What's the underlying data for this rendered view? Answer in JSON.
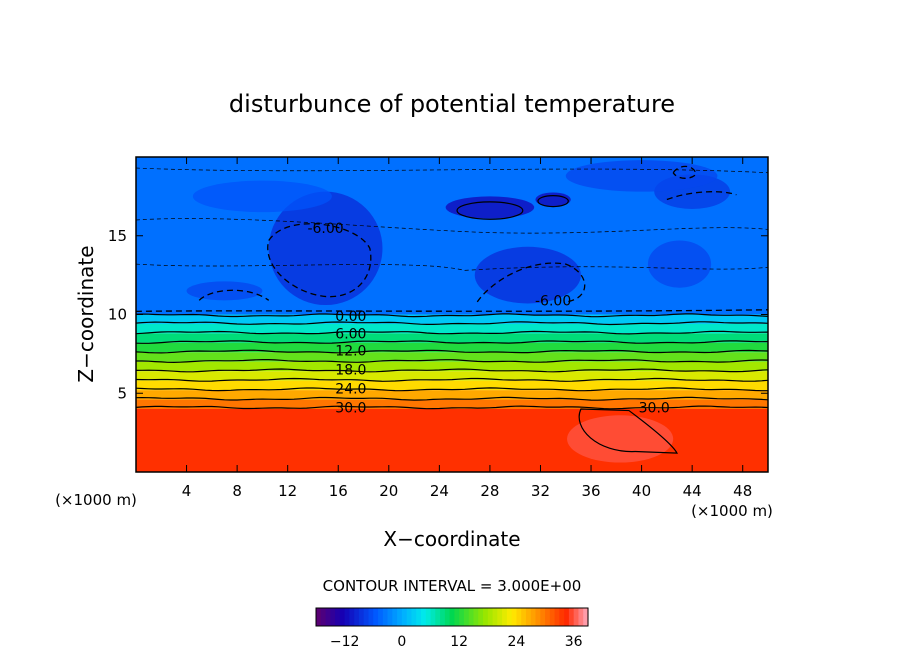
{
  "chart_data": {
    "type": "contour",
    "title": "disturbunce of potential temperature",
    "xlabel": "X−coordinate",
    "ylabel": "Z−coordinate",
    "x_unit_left": "(×1000 m)",
    "x_unit_right": "(×1000 m)",
    "xlim": [
      0,
      50
    ],
    "ylim": [
      0,
      20
    ],
    "x_ticks": [
      4,
      8,
      12,
      16,
      20,
      24,
      28,
      32,
      36,
      40,
      44,
      48
    ],
    "y_ticks": [
      5,
      10,
      15
    ],
    "contour_interval_label": "CONTOUR INTERVAL = 3.000E+00",
    "contour_labels": [
      {
        "text": "0.00",
        "x": 17.0,
        "z": 9.9
      },
      {
        "text": "6.00",
        "x": 17.0,
        "z": 8.8
      },
      {
        "text": "12.0",
        "x": 17.0,
        "z": 7.7
      },
      {
        "text": "18.0",
        "x": 17.0,
        "z": 6.5
      },
      {
        "text": "24.0",
        "x": 17.0,
        "z": 5.3
      },
      {
        "text": "30.0",
        "x": 17.0,
        "z": 4.1
      },
      {
        "text": "30.0",
        "x": 41.0,
        "z": 4.1
      },
      {
        "text": "-6.00",
        "x": 15.0,
        "z": 15.5
      },
      {
        "text": "-6.00",
        "x": 33.0,
        "z": 10.9
      }
    ],
    "thermal_layers": [
      {
        "z_bottom": 0,
        "z_top": 4,
        "value": 34
      },
      {
        "z_bottom": 4,
        "z_top": 4.6,
        "value": 30
      },
      {
        "z_bottom": 4.6,
        "z_top": 5.2,
        "value": 27
      },
      {
        "z_bottom": 5.2,
        "z_top": 5.8,
        "value": 24
      },
      {
        "z_bottom": 5.8,
        "z_top": 6.4,
        "value": 21
      },
      {
        "z_bottom": 6.4,
        "z_top": 7.0,
        "value": 18
      },
      {
        "z_bottom": 7.0,
        "z_top": 7.6,
        "value": 15
      },
      {
        "z_bottom": 7.6,
        "z_top": 8.2,
        "value": 12
      },
      {
        "z_bottom": 8.2,
        "z_top": 8.8,
        "value": 9
      },
      {
        "z_bottom": 8.8,
        "z_top": 9.4,
        "value": 6
      },
      {
        "z_bottom": 9.4,
        "z_top": 10.0,
        "value": 2
      },
      {
        "z_bottom": 10.0,
        "z_top": 20,
        "value": -4
      }
    ],
    "colorbar": {
      "min": -18,
      "max": 39,
      "ticks": [
        -12,
        0,
        12,
        24,
        36
      ],
      "tick_labels": [
        "−12",
        "0",
        "12",
        "24",
        "36"
      ]
    }
  },
  "colors": {
    "background": "#ffffff",
    "axis": "#000000",
    "upper_layer": "#1f9fff",
    "lower_layer": "#ff3a14"
  }
}
